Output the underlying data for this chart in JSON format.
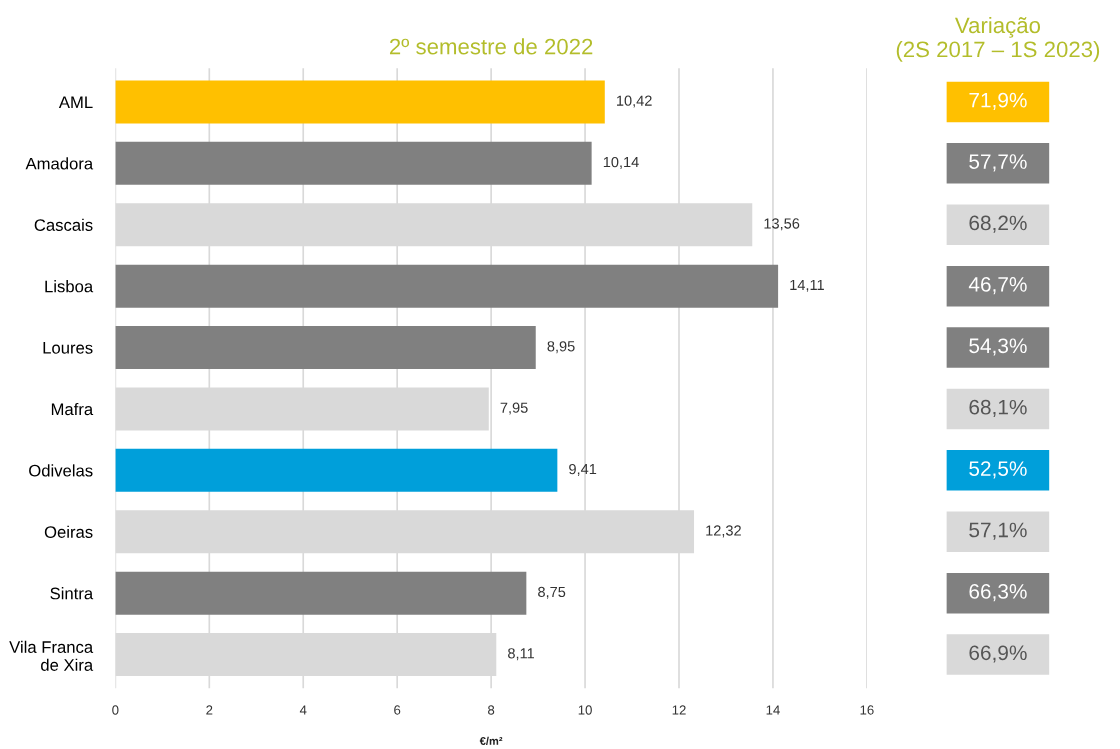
{
  "chart_data": [
    {
      "type": "bar",
      "orientation": "horizontal",
      "title": "2º semestre de 2022",
      "xlabel": "€/m²",
      "categories": [
        "AML",
        "Amadora",
        "Cascais",
        "Lisboa",
        "Loures",
        "Mafra",
        "Odivelas",
        "Oeiras",
        "Sintra",
        "Vila Franca\nde Xira"
      ],
      "values": [
        10.42,
        10.14,
        13.56,
        14.11,
        8.95,
        7.95,
        9.41,
        12.32,
        8.75,
        8.11
      ],
      "value_labels": [
        "10,42",
        "10,14",
        "13,56",
        "14,11",
        "8,95",
        "7,95",
        "9,41",
        "12,32",
        "8,75",
        "8,11"
      ],
      "colors": [
        "#ffc000",
        "#808080",
        "#d9d9d9",
        "#808080",
        "#808080",
        "#d9d9d9",
        "#009fda",
        "#d9d9d9",
        "#808080",
        "#d9d9d9"
      ],
      "xlim": [
        0,
        16
      ],
      "xticks": [
        0,
        2,
        4,
        6,
        8,
        10,
        12,
        14,
        16
      ],
      "grid": "x",
      "legend": false
    },
    {
      "type": "other",
      "title": "Variação\n(2S 2017 – 1S 2023)",
      "annotations": [
        "71,9%",
        "57,7%",
        "68,2%",
        "46,7%",
        "54,3%",
        "68,1%",
        "52,5%",
        "57,1%",
        "66,3%",
        "66,9%"
      ],
      "colors": [
        "#ffc000",
        "#808080",
        "#d9d9d9",
        "#808080",
        "#808080",
        "#d9d9d9",
        "#009fda",
        "#d9d9d9",
        "#808080",
        "#d9d9d9"
      ]
    }
  ]
}
